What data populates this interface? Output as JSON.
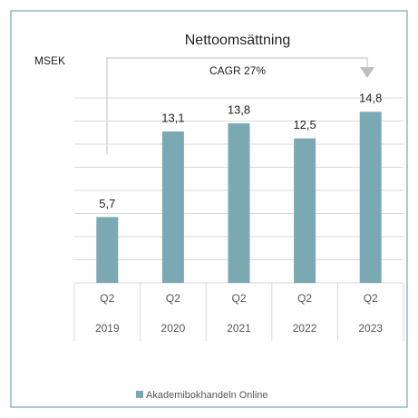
{
  "chart_data": {
    "type": "bar",
    "title": "Nettoomsättning",
    "y_label": "MSEK",
    "annotation": "CAGR 27%",
    "categories": [
      "Q2",
      "Q2",
      "Q2",
      "Q2",
      "Q2"
    ],
    "years": [
      "2019",
      "2020",
      "2021",
      "2022",
      "2023"
    ],
    "series": [
      {
        "name": "Akademibokhandeln Online",
        "color": "#7aa9b4",
        "values": [
          5.7,
          13.1,
          13.8,
          12.5,
          14.8
        ],
        "value_labels": [
          "5,7",
          "13,1",
          "13,8",
          "12,5",
          "14,8"
        ]
      }
    ],
    "ylim": [
      0,
      16
    ],
    "yticks": [
      0,
      2,
      4,
      6,
      8,
      10,
      12,
      14,
      16
    ],
    "grid": true,
    "legend": "bottom"
  }
}
